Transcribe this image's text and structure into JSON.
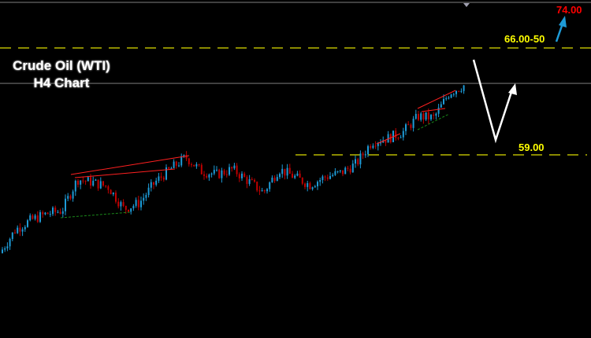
{
  "chart_data": {
    "type": "candlestick",
    "title": "Crude Oil (WTI)",
    "subtitle": "H4 Chart",
    "closes": [
      52.57,
      54.11,
      54.73,
      55.14,
      55.35,
      57.4,
      57.2,
      56.89,
      55.45,
      55.86,
      57.2,
      58.07,
      58.85,
      57.92,
      57.71,
      58.07,
      57.3,
      56.53,
      58.07,
      57.56,
      57.04,
      57.56,
      57.82,
      58.43,
      59.87,
      60.08,
      60.49,
      61.52,
      61.42,
      63.07,
      63.58
    ],
    "current_price": 63.68,
    "levels": [
      {
        "label": "66.00-50",
        "price": 66.0
      },
      {
        "label": "59.00",
        "price": 59.0
      }
    ],
    "target": {
      "label": "74.00",
      "price": 74.0
    },
    "colors": {
      "up": "#1e9bd7",
      "down": "#c00000",
      "level": "#b8b800",
      "level_text": "#ffff00",
      "target_text": "#ff0000",
      "projection": "#ffffff",
      "target_arrow": "#1e9bd7"
    },
    "grid": false,
    "axes": false
  }
}
